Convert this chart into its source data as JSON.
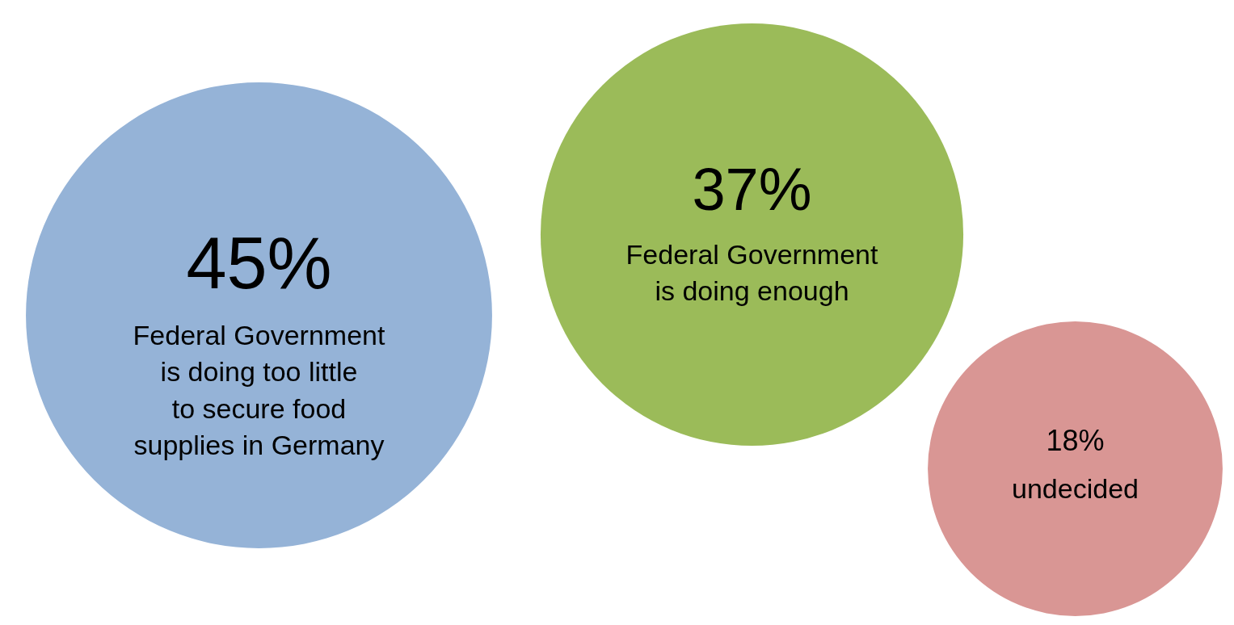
{
  "chart_data": {
    "type": "other",
    "categories": [
      "Federal Government\nis doing too little\nto secure food\nsupplies in Germany",
      "Federal Government\nis doing enough",
      "undecided"
    ],
    "values": [
      45,
      37,
      18
    ],
    "value_labels": [
      "45%",
      "37%",
      "18%"
    ],
    "colors": [
      "#95b3d7",
      "#9bbb59",
      "#d99694"
    ]
  }
}
